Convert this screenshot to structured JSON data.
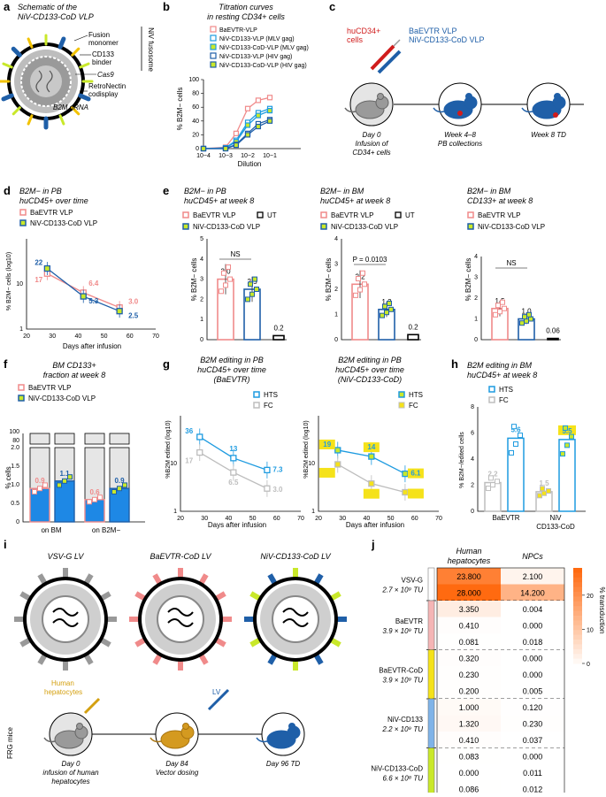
{
  "panels": {
    "a": {
      "letter": "a",
      "title1": "Schematic of the",
      "title2": "NiV-CD133-CoD VLP",
      "labels": {
        "fusion": "Fusion",
        "monomer": "monomer",
        "cd133": "CD133",
        "binder": "binder",
        "cas9": "Cas9",
        "retro": "RetroNectin",
        "codisplay": "codisplay",
        "gRNA": "B2M gRNA",
        "fusosome": "NiV fusosome"
      }
    },
    "b": {
      "letter": "b",
      "title1": "Titration curves",
      "title2": "in resting CD34+ cells",
      "xlabel": "Dilution",
      "ylabel": "% B2M− cells"
    },
    "c": {
      "letter": "c",
      "cells1": "huCD34+",
      "cells2": "cells",
      "vlp1": "BaEVTR VLP",
      "vlp2": "NiV-CD133-CoD VLP",
      "s1a": "Day 0",
      "s1b": "Infusion of",
      "s1c": "CD34+ cells",
      "s2a": "Week 4–8",
      "s2b": "PB collections",
      "s3": "Week 8 TD"
    },
    "d": {
      "letter": "d",
      "title1": "B2M− in PB",
      "title2": "huCD45+ over time",
      "xlabel": "Days after infusion",
      "ylabel": "% B2M− cells (log10)"
    },
    "e": {
      "letter": "e",
      "t1a": "B2M− in PB",
      "t1b": "huCD45+ at week 8",
      "t2a": "B2M− in BM",
      "t2b": "huCD45+ at week 8",
      "t3a": "B2M− in BM",
      "t3b": "CD133+ at week 8",
      "ylabel": "% B2M− cells",
      "ns": "NS",
      "pval": "P = 0.0103"
    },
    "f": {
      "letter": "f",
      "title1": "BM CD133+",
      "title2": "fraction at week 8",
      "ylabel": "% cells"
    },
    "g": {
      "letter": "g",
      "t1a": "B2M editing in PB",
      "t1b": "huCD45+ over time",
      "t1c": "(BaEVTR)",
      "t2a": "B2M editing in PB",
      "t2b": "huCD45+ over time",
      "t2c": "(NiV-CD133-CoD)",
      "xlabel": "Days after infusion",
      "ylabel": "%B2M edited (log10)"
    },
    "h": {
      "letter": "h",
      "title1": "B2M editing in BM",
      "title2": "huCD45+ at week 8",
      "ylabel": "% B2M−/edited cells",
      "g1": "BaEVTR",
      "g2a": "NiV",
      "g2b": "CD133-CoD"
    },
    "i": {
      "letter": "i",
      "v1": "VSV-G LV",
      "v2": "BaEVTR-CoD LV",
      "v3": "NiV-CD133-CoD LV",
      "hep1": "Human",
      "hep2": "hepatocytes",
      "lv": "LV",
      "mice": "FRG mice",
      "s1a": "Day 0",
      "s1b": "infusion of human",
      "s1c": "hepatocytes",
      "s2a": "Day 84",
      "s2b": "Vector dosing",
      "s3": "Day 96 TD"
    },
    "j": {
      "letter": "j",
      "col1a": "Human",
      "col1b": "hepatocytes",
      "col2": "NPCs",
      "cbar_label": "% transduction"
    }
  },
  "legend": {
    "baevtr": "BaEVTR VLP",
    "niv": "NiV-CD133-CoD VLP",
    "ut": "UT",
    "b_items": [
      "BaEVTR-VLP",
      "NiV-CD133-VLP (MLV gag)",
      "NiV-CD133-CoD-VLP (MLV gag)",
      "NiV-CD133-VLP (HIV gag)",
      "NiV-CD133-CoD-VLP (HIV gag)"
    ],
    "hts": "HTS",
    "fc": "FC",
    "on_bm": "on BM",
    "on_b2m": "on B2M−"
  },
  "colors": {
    "baevtr": "#f08a8a",
    "niv": "#1f5fa8",
    "lime": "#c9e82a",
    "yellow": "#f5e21a",
    "hts": "#1e9be0",
    "fc": "#bdbdbd",
    "vsv": "#999999",
    "orange": "#f36a10"
  },
  "chart_data": [
    {
      "id": "b",
      "type": "line",
      "title": "Titration curves in resting CD34+ cells",
      "xlabel": "Dilution",
      "ylabel": "% B2M− cells",
      "x": [
        0.0001,
        0.001,
        0.003,
        0.01,
        0.03,
        0.1
      ],
      "xticks": [
        "10−4",
        "10−3",
        "10−2",
        "10−1"
      ],
      "ylim": [
        0,
        100
      ],
      "yticks": [
        "0",
        "20",
        "40",
        "60",
        "80",
        "100"
      ],
      "series": [
        {
          "name": "BaEVTR-VLP",
          "values": [
            0,
            2,
            22,
            58,
            70,
            74
          ]
        },
        {
          "name": "NiV-CD133-VLP (MLV gag)",
          "values": [
            0,
            1,
            12,
            38,
            52,
            58
          ]
        },
        {
          "name": "NiV-CD133-CoD-VLP (MLV gag)",
          "values": [
            0,
            1,
            10,
            34,
            48,
            55
          ]
        },
        {
          "name": "NiV-CD133-VLP (HIV gag)",
          "values": [
            0,
            0,
            6,
            22,
            36,
            42
          ]
        },
        {
          "name": "NiV-CD133-CoD-VLP (HIV gag)",
          "values": [
            0,
            0,
            5,
            20,
            32,
            40
          ]
        }
      ]
    },
    {
      "id": "d",
      "type": "line",
      "title": "B2M− in PB huCD45+ over time",
      "xlabel": "Days after infusion",
      "ylabel": "% B2M− cells (log10)",
      "x": [
        28,
        42,
        56
      ],
      "xlim": [
        20,
        70
      ],
      "xticks": [
        "20",
        "30",
        "40",
        "50",
        "60",
        "70"
      ],
      "yticks": [
        "1",
        "10"
      ],
      "series": [
        {
          "name": "BaEVTR VLP",
          "values": [
            17,
            6.4,
            3.0
          ]
        },
        {
          "name": "NiV-CD133-CoD VLP",
          "values": [
            22,
            5.3,
            2.5
          ]
        }
      ],
      "labels": {
        "b28": "17",
        "n28": "22",
        "b42": "6.4",
        "n42": "5.3",
        "b56": "3.0",
        "n56": "2.5"
      }
    },
    {
      "id": "e1",
      "type": "bar",
      "categories": [
        "BaEVTR VLP",
        "NiV-CD133-CoD VLP",
        "UT"
      ],
      "values": [
        3.0,
        2.5,
        0.2
      ],
      "labels": [
        "3.0",
        "2.5",
        "0.2"
      ],
      "ylim": [
        0,
        5
      ],
      "yticks": [
        "0",
        "1",
        "2",
        "3",
        "4",
        "5"
      ]
    },
    {
      "id": "e2",
      "type": "bar",
      "categories": [
        "BaEVTR VLP",
        "NiV-CD133-CoD VLP",
        "UT"
      ],
      "values": [
        2.2,
        1.2,
        0.2
      ],
      "labels": [
        "2.2",
        "1.2",
        "0.2"
      ],
      "ylim": [
        0,
        4
      ],
      "yticks": [
        "0",
        "1",
        "2",
        "3",
        "4"
      ]
    },
    {
      "id": "e3",
      "type": "bar",
      "categories": [
        "BaEVTR VLP",
        "NiV-CD133-CoD VLP",
        "UT"
      ],
      "values": [
        1.5,
        1.0,
        0.06
      ],
      "labels": [
        "1.5",
        "1.0",
        "0.06"
      ],
      "ylim": [
        0,
        4
      ],
      "yticks": [
        "0",
        "1",
        "2",
        "3",
        "4"
      ]
    },
    {
      "id": "f",
      "type": "bar",
      "categories": [
        "on BM",
        "on B2M−"
      ],
      "series": [
        {
          "name": "BaEVTR VLP",
          "values": [
            0.9,
            0.6
          ]
        },
        {
          "name": "NiV-CD133-CoD VLP",
          "values": [
            1.1,
            0.9
          ]
        }
      ],
      "labels": [
        "0.9",
        "1.1",
        "0.6",
        "0.9"
      ],
      "yticks": [
        "0",
        "0.5",
        "1.0",
        "1.5",
        "2.0",
        "80",
        "100"
      ]
    },
    {
      "id": "g1",
      "type": "line",
      "title": "B2M editing in PB huCD45+ over time (BaEVTR)",
      "x": [
        28,
        42,
        56
      ],
      "xticks": [
        "20",
        "30",
        "40",
        "50",
        "60",
        "70"
      ],
      "yticks": [
        "1",
        "10"
      ],
      "series": [
        {
          "name": "HTS",
          "values": [
            36,
            13,
            7.3
          ]
        },
        {
          "name": "FC",
          "values": [
            17,
            6.5,
            3.0
          ]
        }
      ],
      "labels": [
        "36",
        "13",
        "7.3",
        "17",
        "6.5",
        "3.0"
      ]
    },
    {
      "id": "g2",
      "type": "line",
      "title": "B2M editing in PB huCD45+ over time (NiV-CD133-CoD)",
      "x": [
        28,
        42,
        56
      ],
      "xticks": [
        "20",
        "30",
        "40",
        "50",
        "60",
        "70"
      ],
      "yticks": [
        "1",
        "10"
      ],
      "series": [
        {
          "name": "HTS",
          "values": [
            19,
            14,
            6.1
          ]
        },
        {
          "name": "FC",
          "values": [
            9.6,
            3.8,
            2.5
          ]
        }
      ],
      "labels": [
        "19",
        "14",
        "6.1",
        "9.6",
        "3.8",
        "2.5"
      ]
    },
    {
      "id": "h",
      "type": "bar",
      "categories": [
        "BaEVTR FC",
        "BaEVTR HTS",
        "NiV FC",
        "NiV HTS"
      ],
      "values": [
        2.2,
        5.6,
        1.5,
        5.5
      ],
      "labels": [
        "2.2",
        "5.6",
        "1.5",
        "5.5"
      ],
      "yticks": [
        "0",
        "2",
        "4",
        "6",
        "8"
      ]
    },
    {
      "id": "j",
      "type": "heatmap",
      "columns": [
        "Human hepatocytes",
        "NPCs"
      ],
      "clim": [
        0,
        28
      ],
      "cticks": [
        "20",
        "10",
        "0"
      ],
      "groups": [
        {
          "name": "VSV-G",
          "dose": "2.7 × 10⁹ TU",
          "rows": [
            [
              "23.800",
              "2.100"
            ],
            [
              "28.000",
              "14.200"
            ]
          ],
          "values": [
            [
              23.8,
              2.1
            ],
            [
              28.0,
              14.2
            ]
          ]
        },
        {
          "name": "BaEVTR",
          "dose": "3.9 × 10⁹ TU",
          "rows": [
            [
              "3.350",
              "0.004"
            ],
            [
              "0.410",
              "0.000"
            ],
            [
              "0.081",
              "0.018"
            ]
          ],
          "values": [
            [
              3.35,
              0.004
            ],
            [
              0.41,
              0
            ],
            [
              0.081,
              0.018
            ]
          ]
        },
        {
          "name": "BaEVTR-CoD",
          "dose": "3.9 × 10⁹ TU",
          "rows": [
            [
              "0.320",
              "0.000"
            ],
            [
              "0.230",
              "0.000"
            ],
            [
              "0.200",
              "0.005"
            ]
          ],
          "values": [
            [
              0.32,
              0
            ],
            [
              0.23,
              0
            ],
            [
              0.2,
              0.005
            ]
          ]
        },
        {
          "name": "NiV-CD133",
          "dose": "2.2 × 10⁹ TU",
          "rows": [
            [
              "1.000",
              "0.120"
            ],
            [
              "1.320",
              "0.230"
            ],
            [
              "0.410",
              "0.037"
            ]
          ],
          "values": [
            [
              1.0,
              0.12
            ],
            [
              1.32,
              0.23
            ],
            [
              0.41,
              0.037
            ]
          ]
        },
        {
          "name": "NiV-CD133-CoD",
          "dose": "6.6 × 10⁸ TU",
          "rows": [
            [
              "0.083",
              "0.000"
            ],
            [
              "0.000",
              "0.011"
            ],
            [
              "0.086",
              "0.012"
            ]
          ],
          "values": [
            [
              0.083,
              0
            ],
            [
              0,
              0.011
            ],
            [
              0.086,
              0.012
            ]
          ]
        }
      ]
    }
  ]
}
